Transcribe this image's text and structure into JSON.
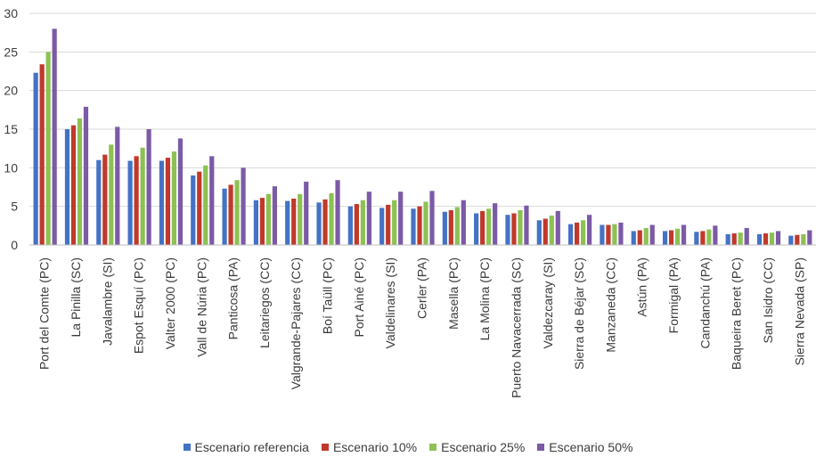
{
  "chart_data": {
    "type": "bar",
    "title": "",
    "xlabel": "",
    "ylabel": "",
    "ylim": [
      0,
      30
    ],
    "yticks": [
      "0",
      "5",
      "10",
      "15",
      "20",
      "25",
      "30"
    ],
    "grid": true,
    "legend_position": "bottom",
    "categories": [
      "Port del Comte (PC)",
      "La Pinilla (SC)",
      "Javalambre (SI)",
      "Espot Esquí (PC)",
      "Valter 2000 (PC)",
      "Vall de Núria (PC)",
      "Panticosa (PA)",
      "Leitariegos (CC)",
      "Valgrande-Pajares (CC)",
      "Boí Taüll (PC)",
      "Port Ainé (PC)",
      "Valdelinares (SI)",
      "Cerler  (PA)",
      "Masella (PC)",
      "La Molina (PC)",
      "Puerto Navacerrada (SC)",
      "Valdezcaray (SI)",
      "Sierra de Béjar (SC)",
      "Manzaneda (CC)",
      "Astún (PA)",
      "Formigal (PA)",
      "Candanchú (PA)",
      "Baqueira Beret (PC)",
      "San Isidro (CC)",
      "Sierra Nevada (SP)"
    ],
    "series": [
      {
        "name": "Escenario referencia",
        "color": "#4472c4",
        "values": [
          22.3,
          15.0,
          11.0,
          10.9,
          10.9,
          9.0,
          7.3,
          5.8,
          5.7,
          5.5,
          5.0,
          4.8,
          4.7,
          4.3,
          4.1,
          3.9,
          3.2,
          2.7,
          2.6,
          1.8,
          1.8,
          1.7,
          1.4,
          1.4,
          1.2
        ]
      },
      {
        "name": "Escenario 10%",
        "color": "#c0392b",
        "values": [
          23.4,
          15.5,
          11.7,
          11.5,
          11.3,
          9.5,
          7.8,
          6.1,
          6.0,
          5.9,
          5.3,
          5.2,
          5.0,
          4.5,
          4.4,
          4.1,
          3.4,
          2.9,
          2.6,
          1.9,
          1.9,
          1.8,
          1.5,
          1.5,
          1.3
        ]
      },
      {
        "name": "Escenario 25%",
        "color": "#8dc153",
        "values": [
          25.0,
          16.4,
          13.0,
          12.6,
          12.1,
          10.3,
          8.4,
          6.6,
          6.6,
          6.7,
          5.8,
          5.8,
          5.6,
          4.9,
          4.7,
          4.5,
          3.8,
          3.2,
          2.7,
          2.2,
          2.1,
          2.0,
          1.6,
          1.6,
          1.4
        ]
      },
      {
        "name": "Escenario 50%",
        "color": "#7b5aa6",
        "values": [
          28.0,
          17.9,
          15.3,
          15.0,
          13.8,
          11.5,
          10.0,
          7.6,
          8.2,
          8.4,
          6.9,
          6.9,
          7.0,
          5.8,
          5.4,
          5.1,
          4.4,
          3.9,
          2.9,
          2.6,
          2.6,
          2.5,
          2.2,
          1.8,
          1.9
        ]
      }
    ]
  }
}
